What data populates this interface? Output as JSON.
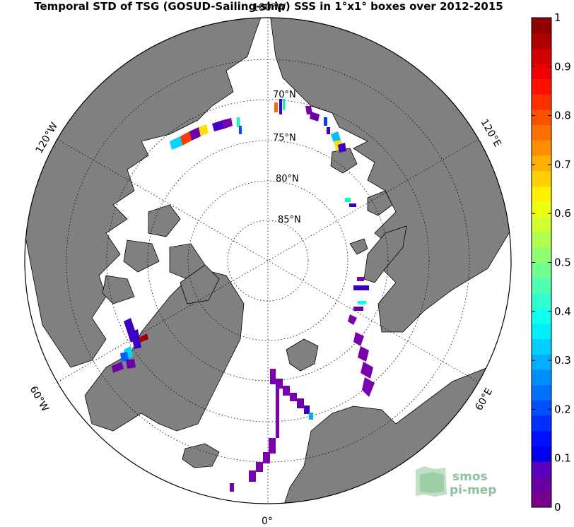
{
  "title": "Temporal STD of TSG (GOSUD-Sailing-ship) SSS in 1°x1° boxes over 2012-2015",
  "longitude_labels": {
    "top": "180°W",
    "upper_left": "120°W",
    "upper_right": "120°E",
    "lower_left": "60°W",
    "lower_right": "60°E",
    "bottom": "0°"
  },
  "latitude_labels": [
    "70°N",
    "75°N",
    "80°N",
    "85°N"
  ],
  "colorbar": {
    "min": 0,
    "max": 1,
    "ticks": [
      "0",
      "0.1",
      "0.2",
      "0.3",
      "0.4",
      "0.5",
      "0.6",
      "0.7",
      "0.8",
      "0.9",
      "1"
    ],
    "colormap": "jet",
    "land_color": "#808080"
  },
  "logo": {
    "line1": "smos",
    "line2": "pi-mep"
  }
}
